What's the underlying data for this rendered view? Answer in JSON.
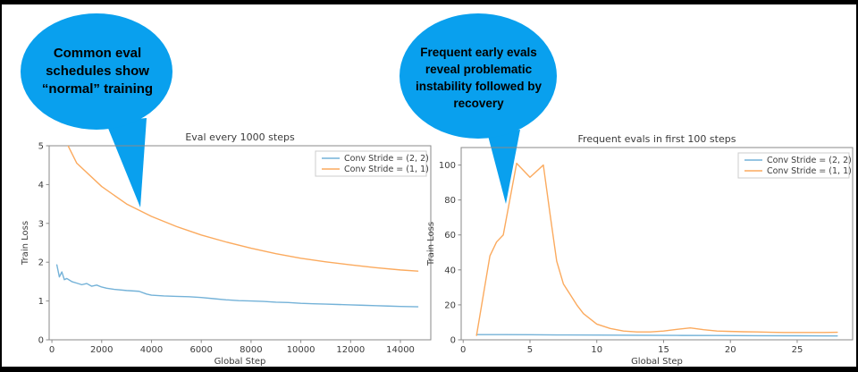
{
  "page": {
    "background": "#ffffff",
    "frame_color": "#000000"
  },
  "callouts": [
    {
      "text": "Common eval\nschedules show\n“normal” training",
      "color": "#09a0ee"
    },
    {
      "text": "Frequent early evals\nreveal problematic\ninstability followed by\nrecovery",
      "color": "#09a0ee"
    }
  ],
  "chart_data": [
    {
      "type": "line",
      "title": "Eval every 1000 steps",
      "xlabel": "Global Step",
      "ylabel": "Train Loss",
      "xlim": [
        -110,
        15220
      ],
      "ylim": [
        0,
        5
      ],
      "xticks": [
        0,
        2000,
        4000,
        6000,
        8000,
        10000,
        12000,
        14000
      ],
      "yticks": [
        0,
        1,
        2,
        3,
        4,
        5
      ],
      "grid": false,
      "legend_position": "upper right",
      "series": [
        {
          "name": "Conv Stride =  (2, 2)",
          "color": "#74b2d8",
          "x": [
            200,
            300,
            400,
            500,
            600,
            800,
            1000,
            1200,
            1400,
            1600,
            1800,
            2000,
            2200,
            2500,
            3000,
            3500,
            3800,
            4000,
            4500,
            5000,
            5500,
            6000,
            6500,
            7000,
            7500,
            8000,
            8500,
            9000,
            9500,
            10000,
            10500,
            11000,
            11500,
            12000,
            12500,
            13000,
            13500,
            14000,
            14700
          ],
          "y": [
            1.93,
            1.62,
            1.75,
            1.55,
            1.58,
            1.5,
            1.46,
            1.42,
            1.45,
            1.38,
            1.41,
            1.36,
            1.33,
            1.3,
            1.27,
            1.25,
            1.18,
            1.15,
            1.13,
            1.12,
            1.11,
            1.09,
            1.06,
            1.03,
            1.01,
            1.0,
            0.99,
            0.97,
            0.96,
            0.94,
            0.93,
            0.92,
            0.91,
            0.9,
            0.89,
            0.88,
            0.87,
            0.86,
            0.85
          ]
        },
        {
          "name": "Conv Stride =  (1, 1)",
          "color": "#fbaa5e",
          "x": [
            650,
            1000,
            2000,
            3000,
            4000,
            5000,
            6000,
            7000,
            8000,
            9000,
            10000,
            11000,
            12000,
            13000,
            14000,
            14700
          ],
          "y": [
            5.0,
            4.55,
            3.95,
            3.5,
            3.18,
            2.92,
            2.7,
            2.52,
            2.36,
            2.22,
            2.1,
            2.01,
            1.93,
            1.86,
            1.8,
            1.77
          ]
        }
      ]
    },
    {
      "type": "line",
      "title": "Frequent evals in first 100 steps",
      "xlabel": "Global Step",
      "ylabel": "Train Loss",
      "xlim": [
        -0.15,
        29.15
      ],
      "ylim": [
        0,
        110
      ],
      "xticks": [
        0,
        5,
        10,
        15,
        20,
        25
      ],
      "yticks": [
        0,
        20,
        40,
        60,
        80,
        100
      ],
      "grid": false,
      "legend_position": "upper right",
      "series": [
        {
          "name": "Conv Stride =  (2, 2)",
          "color": "#74b2d8",
          "x": [
            1,
            3,
            5,
            7,
            10,
            13,
            16,
            19,
            22,
            25,
            28
          ],
          "y": [
            3.0,
            2.95,
            2.9,
            2.8,
            2.7,
            2.6,
            2.5,
            2.45,
            2.35,
            2.3,
            2.2
          ]
        },
        {
          "name": "Conv Stride =  (1, 1)",
          "color": "#fbaa5e",
          "x": [
            1,
            2,
            2.5,
            3,
            4,
            5,
            6,
            6.5,
            7,
            7.5,
            8,
            8.5,
            9,
            10,
            11,
            12,
            13,
            14,
            15,
            16,
            17,
            18,
            19,
            20,
            21,
            22,
            23,
            24,
            25,
            26,
            27,
            28
          ],
          "y": [
            2.5,
            48,
            56,
            60,
            101,
            93,
            100,
            72,
            45,
            32,
            26,
            20,
            15,
            9,
            6.5,
            5,
            4.5,
            4.5,
            5,
            6,
            6.8,
            5.8,
            5,
            4.8,
            4.6,
            4.5,
            4.3,
            4.2,
            4.2,
            4.2,
            4.2,
            4.3
          ]
        }
      ]
    }
  ]
}
